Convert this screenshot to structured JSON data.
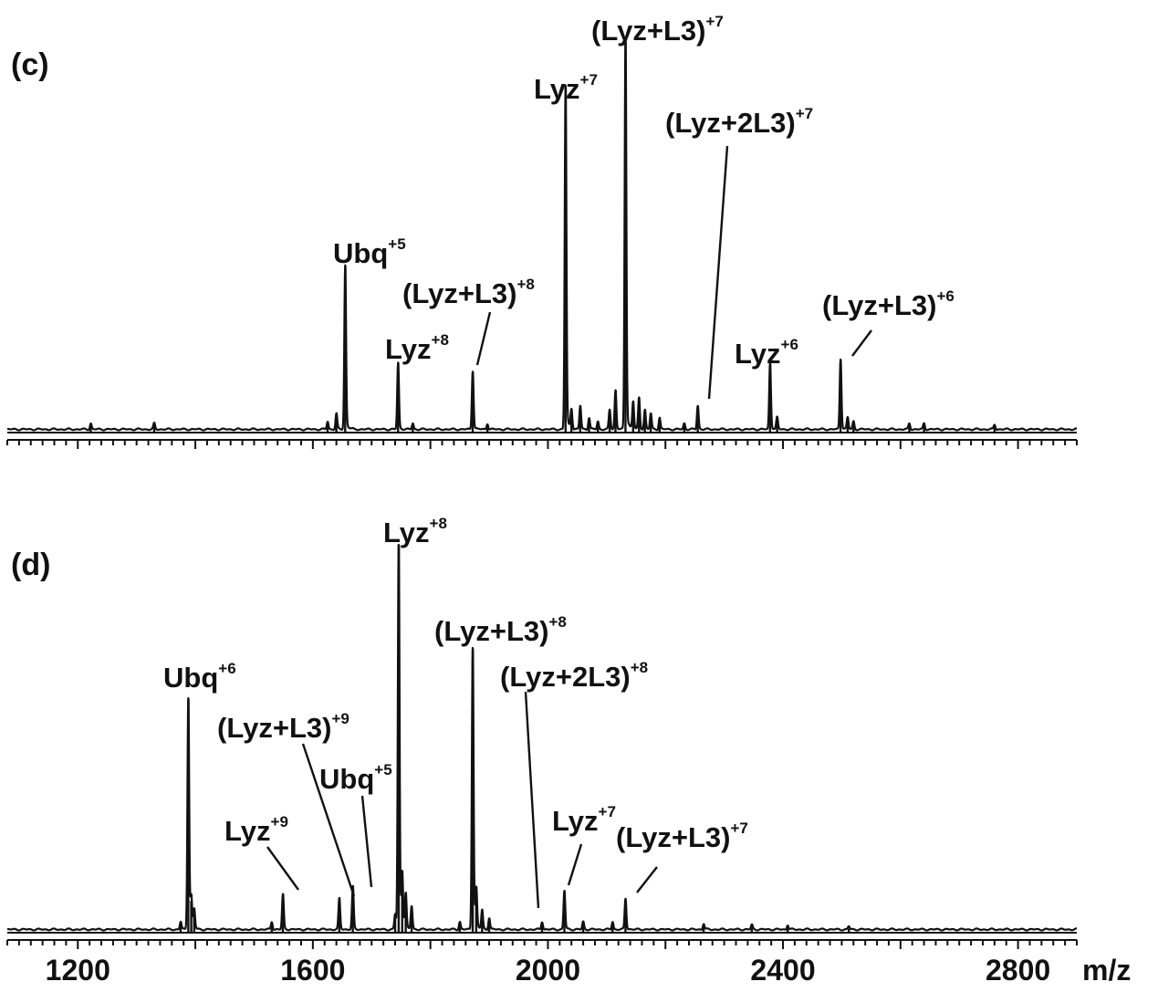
{
  "chart_data": {
    "type": "line",
    "x_axis": {
      "label": "m/z",
      "range": [
        1080,
        2900
      ],
      "major_ticks": [
        1200,
        1600,
        2000,
        2400,
        2800
      ],
      "tick_labels": [
        "1200",
        "1600",
        "2000",
        "2400",
        "2800"
      ],
      "minor_tick_step": 20,
      "major_tick_step": 200
    },
    "panels": [
      {
        "label": "(c)",
        "y_range": [
          0,
          100
        ],
        "peaks": [
          {
            "x": 1222,
            "y": 1.5
          },
          {
            "x": 1330,
            "y": 1.5
          },
          {
            "x": 1625,
            "y": 2
          },
          {
            "x": 1640,
            "y": 4
          },
          {
            "x": 1655,
            "y": 42
          },
          {
            "x": 1745,
            "y": 17
          },
          {
            "x": 1770,
            "y": 1.5
          },
          {
            "x": 1872,
            "y": 15
          },
          {
            "x": 1897,
            "y": 1.5
          },
          {
            "x": 2030,
            "y": 88
          },
          {
            "x": 2040,
            "y": 5
          },
          {
            "x": 2055,
            "y": 6
          },
          {
            "x": 2070,
            "y": 3
          },
          {
            "x": 2085,
            "y": 2
          },
          {
            "x": 2105,
            "y": 5
          },
          {
            "x": 2115,
            "y": 10
          },
          {
            "x": 2132,
            "y": 100
          },
          {
            "x": 2145,
            "y": 7
          },
          {
            "x": 2155,
            "y": 8
          },
          {
            "x": 2165,
            "y": 5
          },
          {
            "x": 2175,
            "y": 4
          },
          {
            "x": 2190,
            "y": 3
          },
          {
            "x": 2232,
            "y": 1.5
          },
          {
            "x": 2255,
            "y": 6
          },
          {
            "x": 2378,
            "y": 17
          },
          {
            "x": 2390,
            "y": 3
          },
          {
            "x": 2498,
            "y": 18
          },
          {
            "x": 2510,
            "y": 3
          },
          {
            "x": 2520,
            "y": 2
          },
          {
            "x": 2615,
            "y": 1.5
          },
          {
            "x": 2640,
            "y": 1.5
          },
          {
            "x": 2760,
            "y": 1.2
          }
        ],
        "annotations": [
          {
            "text": "Ubq",
            "charge": "+5",
            "x": 1655
          },
          {
            "text": "Lyz",
            "charge": "+8",
            "x": 1745
          },
          {
            "text": "(Lyz+L3)",
            "charge": "+8",
            "x": 1872
          },
          {
            "text": "Lyz",
            "charge": "+7",
            "x": 2030
          },
          {
            "text": "(Lyz+L3)",
            "charge": "+7",
            "x": 2132
          },
          {
            "text": "(Lyz+2L3)",
            "charge": "+7",
            "x": 2255
          },
          {
            "text": "Lyz",
            "charge": "+6",
            "x": 2378
          },
          {
            "text": "(Lyz+L3)",
            "charge": "+6",
            "x": 2498
          }
        ]
      },
      {
        "label": "(d)",
        "y_range": [
          0,
          100
        ],
        "peaks": [
          {
            "x": 1375,
            "y": 2
          },
          {
            "x": 1388,
            "y": 60
          },
          {
            "x": 1393,
            "y": 8
          },
          {
            "x": 1398,
            "y": 5
          },
          {
            "x": 1530,
            "y": 2
          },
          {
            "x": 1549,
            "y": 9
          },
          {
            "x": 1645,
            "y": 8
          },
          {
            "x": 1668,
            "y": 11
          },
          {
            "x": 1740,
            "y": 4
          },
          {
            "x": 1746,
            "y": 100
          },
          {
            "x": 1752,
            "y": 14
          },
          {
            "x": 1758,
            "y": 9
          },
          {
            "x": 1768,
            "y": 6
          },
          {
            "x": 1850,
            "y": 2
          },
          {
            "x": 1872,
            "y": 73
          },
          {
            "x": 1878,
            "y": 10
          },
          {
            "x": 1888,
            "y": 5
          },
          {
            "x": 1900,
            "y": 3
          },
          {
            "x": 1990,
            "y": 2
          },
          {
            "x": 2028,
            "y": 10
          },
          {
            "x": 2060,
            "y": 2
          },
          {
            "x": 2110,
            "y": 2
          },
          {
            "x": 2132,
            "y": 8
          },
          {
            "x": 2265,
            "y": 1.5
          },
          {
            "x": 2347,
            "y": 1.2
          },
          {
            "x": 2408,
            "y": 1.2
          },
          {
            "x": 2512,
            "y": 0.8
          }
        ],
        "annotations": [
          {
            "text": "Ubq",
            "charge": "+6",
            "x": 1388
          },
          {
            "text": "Lyz",
            "charge": "+9",
            "x": 1549
          },
          {
            "text": "(Lyz+L3)",
            "charge": "+9",
            "x": 1645
          },
          {
            "text": "Ubq",
            "charge": "+5",
            "x": 1668
          },
          {
            "text": "Lyz",
            "charge": "+8",
            "x": 1746
          },
          {
            "text": "(Lyz+L3)",
            "charge": "+8",
            "x": 1872
          },
          {
            "text": "(Lyz+2L3)",
            "charge": "+8",
            "x": 1990
          },
          {
            "text": "Lyz",
            "charge": "+7",
            "x": 2028
          },
          {
            "text": "(Lyz+L3)",
            "charge": "+7",
            "x": 2132
          }
        ]
      }
    ]
  }
}
